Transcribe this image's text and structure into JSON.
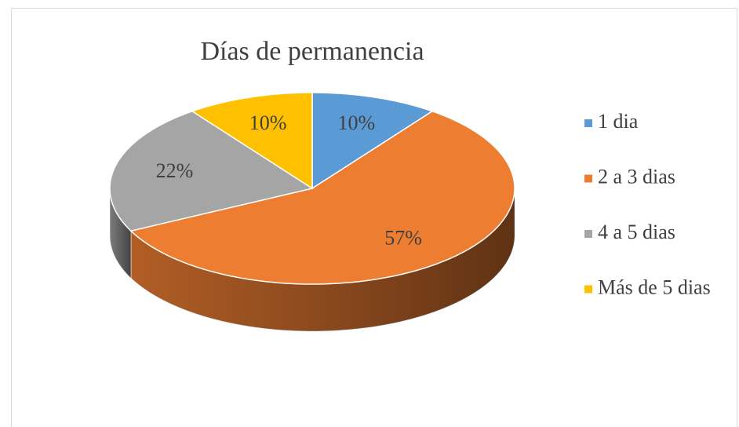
{
  "chart_data": {
    "type": "pie",
    "title": "Días de permanencia",
    "categories": [
      "1 dia",
      "2 a 3 dias",
      "4 a 5 dias",
      "Más de 5 dias"
    ],
    "values": [
      10,
      57,
      22,
      10
    ],
    "value_labels": [
      "10%",
      "57%",
      "22%",
      "10%"
    ],
    "colors": [
      "#5b9bd5",
      "#ed7d31",
      "#a5a5a5",
      "#ffc000"
    ],
    "legend": "right"
  }
}
